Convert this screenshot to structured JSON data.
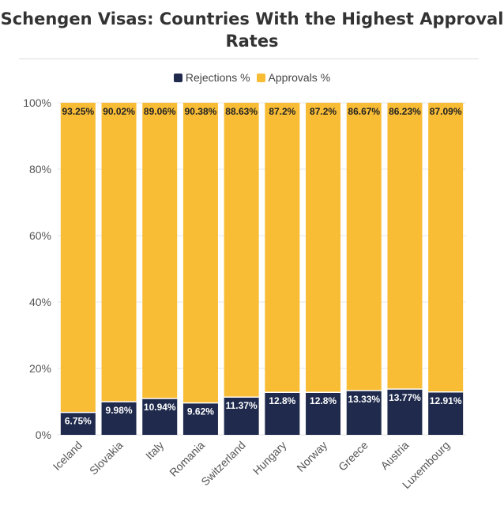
{
  "title": "Schengen Visas: Countries With the Highest Approval Rates",
  "legend": {
    "rejections_label": "Rejections %",
    "approvals_label": "Approvals %"
  },
  "colors": {
    "rejections": "#1f2a4d",
    "approvals": "#f8bc35",
    "grid": "#e6e6e6",
    "axis_text": "#555555"
  },
  "chart_data": {
    "type": "bar",
    "stacked": true,
    "title": "Schengen Visas: Countries With the Highest Approval Rates",
    "xlabel": "",
    "ylabel": "",
    "ylim": [
      0,
      100
    ],
    "y_ticks": [
      "0%",
      "20%",
      "40%",
      "60%",
      "80%",
      "100%"
    ],
    "grid": true,
    "legend_position": "top-center",
    "categories": [
      "Iceland",
      "Slovakia",
      "Italy",
      "Romania",
      "Switzerland",
      "Hungary",
      "Norway",
      "Greece",
      "Austria",
      "Luxembourg"
    ],
    "series": [
      {
        "name": "Rejections %",
        "values": [
          6.75,
          9.98,
          10.94,
          9.62,
          11.37,
          12.8,
          12.8,
          13.33,
          13.77,
          12.91
        ],
        "labels": [
          "6.75%",
          "9.98%",
          "10.94%",
          "9.62%",
          "11.37%",
          "12.8%",
          "12.8%",
          "13.33%",
          "13.77%",
          "12.91%"
        ]
      },
      {
        "name": "Approvals %",
        "values": [
          93.25,
          90.02,
          89.06,
          90.38,
          88.63,
          87.2,
          87.2,
          86.67,
          86.23,
          87.09
        ],
        "labels": [
          "93.25%",
          "90.02%",
          "89.06%",
          "90.38%",
          "88.63%",
          "87.2%",
          "87.2%",
          "86.67%",
          "86.23%",
          "87.09%"
        ]
      }
    ]
  }
}
